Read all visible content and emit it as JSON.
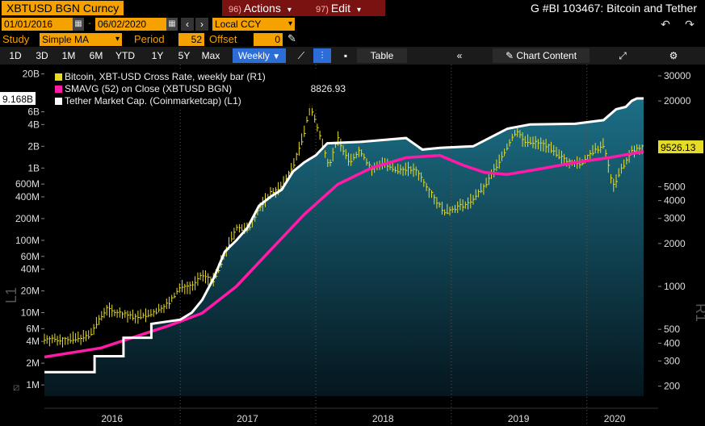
{
  "header": {
    "ticker": "XBTUSD BGN Curncy",
    "actions": {
      "num": "96)",
      "label": "Actions"
    },
    "edit": {
      "num": "97)",
      "label": "Edit"
    },
    "title": "G #BI 103467: Bitcoin and Tether"
  },
  "range": {
    "start": "01/01/2016",
    "end": "06/02/2020",
    "currency": "Local CCY"
  },
  "study": {
    "label": "Study",
    "type": "Simple MA",
    "period_label": "Period",
    "period": "52",
    "offset_label": "Offset",
    "offset": "0"
  },
  "toolbar": {
    "periods": [
      "1D",
      "3D",
      "1M",
      "6M",
      "YTD",
      "1Y",
      "5Y",
      "Max"
    ],
    "frequency": "Weekly",
    "table_label": "Table",
    "chart_content_label": "Chart Content"
  },
  "colors": {
    "bitcoin": "#e6dc28",
    "sma": "#ff1aa8",
    "tether": "#ffffff",
    "accent": "#f5a100",
    "area_top": "#1c6f86",
    "area_bottom": "#05161e"
  },
  "chart_data": {
    "type": "line",
    "x_ticks": [
      "2016",
      "2017",
      "2018",
      "2019",
      "2020"
    ],
    "x_range": [
      "2016-01-01",
      "2020-06-02"
    ],
    "left_axis": {
      "label": "L1",
      "scale": "log",
      "ticks": [
        "1M",
        "2M",
        "4M",
        "6M",
        "10M",
        "20M",
        "40M",
        "60M",
        "100M",
        "200M",
        "400M",
        "600M",
        "1B",
        "2B",
        "4B",
        "6B",
        "20B"
      ],
      "range": [
        700000,
        27000000000
      ],
      "current_label": "9.168B"
    },
    "right_axis": {
      "label": "R1",
      "scale": "log",
      "ticks": [
        "200",
        "300",
        "400",
        "500",
        "1000",
        "2000",
        "3000",
        "4000",
        "5000",
        "10000",
        "20000",
        "30000"
      ],
      "range": [
        170,
        36000
      ],
      "current_label": "9526.13"
    },
    "series": [
      {
        "name": "Bitcoin, XBT-USD Cross Rate, weekly bar (R1)",
        "axis": "right",
        "points": [
          [
            "2016-01-01",
            430
          ],
          [
            "2016-03-01",
            420
          ],
          [
            "2016-05-01",
            450
          ],
          [
            "2016-06-15",
            700
          ],
          [
            "2016-07-15",
            650
          ],
          [
            "2016-09-01",
            610
          ],
          [
            "2016-10-15",
            640
          ],
          [
            "2016-12-01",
            760
          ],
          [
            "2017-01-01",
            990
          ],
          [
            "2017-02-01",
            1000
          ],
          [
            "2017-03-01",
            1200
          ],
          [
            "2017-04-01",
            1100
          ],
          [
            "2017-05-01",
            1700
          ],
          [
            "2017-06-01",
            2600
          ],
          [
            "2017-07-01",
            2500
          ],
          [
            "2017-08-01",
            3500
          ],
          [
            "2017-09-01",
            4500
          ],
          [
            "2017-10-01",
            5000
          ],
          [
            "2017-11-01",
            7000
          ],
          [
            "2017-12-01",
            12000
          ],
          [
            "2017-12-17",
            19000
          ],
          [
            "2018-01-01",
            14000
          ],
          [
            "2018-02-06",
            7000
          ],
          [
            "2018-03-01",
            11000
          ],
          [
            "2018-04-01",
            7500
          ],
          [
            "2018-05-01",
            9000
          ],
          [
            "2018-06-01",
            6500
          ],
          [
            "2018-07-01",
            7500
          ],
          [
            "2018-08-01",
            6500
          ],
          [
            "2018-09-01",
            6700
          ],
          [
            "2018-10-01",
            6400
          ],
          [
            "2018-11-15",
            4200
          ],
          [
            "2018-12-15",
            3300
          ],
          [
            "2019-01-15",
            3600
          ],
          [
            "2019-02-15",
            3800
          ],
          [
            "2019-04-01",
            5000
          ],
          [
            "2019-05-15",
            8000
          ],
          [
            "2019-06-26",
            12500
          ],
          [
            "2019-07-15",
            10500
          ],
          [
            "2019-08-15",
            10200
          ],
          [
            "2019-09-15",
            9800
          ],
          [
            "2019-10-15",
            8300
          ],
          [
            "2019-11-15",
            7500
          ],
          [
            "2019-12-15",
            7200
          ],
          [
            "2020-01-15",
            8700
          ],
          [
            "2020-02-15",
            9800
          ],
          [
            "2020-03-12",
            5000
          ],
          [
            "2020-04-01",
            6500
          ],
          [
            "2020-05-01",
            8800
          ],
          [
            "2020-06-02",
            9526.13
          ]
        ]
      },
      {
        "name": "SMAVG (52) on Close (XBTUSD BGN)",
        "axis": "right",
        "value_label": "8826.93",
        "points": [
          [
            "2016-01-01",
            320
          ],
          [
            "2016-06-01",
            370
          ],
          [
            "2016-12-01",
            530
          ],
          [
            "2017-03-01",
            650
          ],
          [
            "2017-06-01",
            1000
          ],
          [
            "2017-09-01",
            1800
          ],
          [
            "2017-12-01",
            3200
          ],
          [
            "2018-03-01",
            5200
          ],
          [
            "2018-06-01",
            6800
          ],
          [
            "2018-09-01",
            8000
          ],
          [
            "2018-12-01",
            8300
          ],
          [
            "2019-02-01",
            7100
          ],
          [
            "2019-04-01",
            6300
          ],
          [
            "2019-06-01",
            6100
          ],
          [
            "2019-09-01",
            6700
          ],
          [
            "2019-12-01",
            7400
          ],
          [
            "2020-03-01",
            8000
          ],
          [
            "2020-06-02",
            8826.93
          ]
        ]
      },
      {
        "name": "Tether Market Cap. (Coinmarketcap) (L1)",
        "axis": "left",
        "points": [
          [
            "2016-01-01",
            1500000
          ],
          [
            "2016-05-15",
            1500000
          ],
          [
            "2016-05-15",
            2500000
          ],
          [
            "2016-08-01",
            2500000
          ],
          [
            "2016-08-01",
            4500000
          ],
          [
            "2016-10-15",
            4500000
          ],
          [
            "2016-10-15",
            7000000
          ],
          [
            "2017-01-01",
            8000000
          ],
          [
            "2017-02-01",
            10000000
          ],
          [
            "2017-03-01",
            15000000
          ],
          [
            "2017-04-01",
            30000000
          ],
          [
            "2017-05-01",
            70000000
          ],
          [
            "2017-06-01",
            100000000
          ],
          [
            "2017-07-01",
            150000000
          ],
          [
            "2017-08-01",
            300000000
          ],
          [
            "2017-09-01",
            400000000
          ],
          [
            "2017-10-01",
            500000000
          ],
          [
            "2017-11-01",
            900000000
          ],
          [
            "2017-12-01",
            1200000000
          ],
          [
            "2018-01-01",
            1500000000
          ],
          [
            "2018-02-01",
            2200000000
          ],
          [
            "2018-05-01",
            2300000000
          ],
          [
            "2018-09-01",
            2600000000
          ],
          [
            "2018-10-15",
            1800000000
          ],
          [
            "2018-12-01",
            1900000000
          ],
          [
            "2019-03-01",
            2000000000
          ],
          [
            "2019-06-01",
            3500000000
          ],
          [
            "2019-08-01",
            4000000000
          ],
          [
            "2019-12-01",
            4100000000
          ],
          [
            "2020-02-15",
            4600000000
          ],
          [
            "2020-03-20",
            6500000000
          ],
          [
            "2020-04-15",
            7000000000
          ],
          [
            "2020-05-01",
            8500000000
          ],
          [
            "2020-05-15",
            9168000000
          ],
          [
            "2020-06-02",
            9168000000
          ]
        ]
      }
    ]
  }
}
